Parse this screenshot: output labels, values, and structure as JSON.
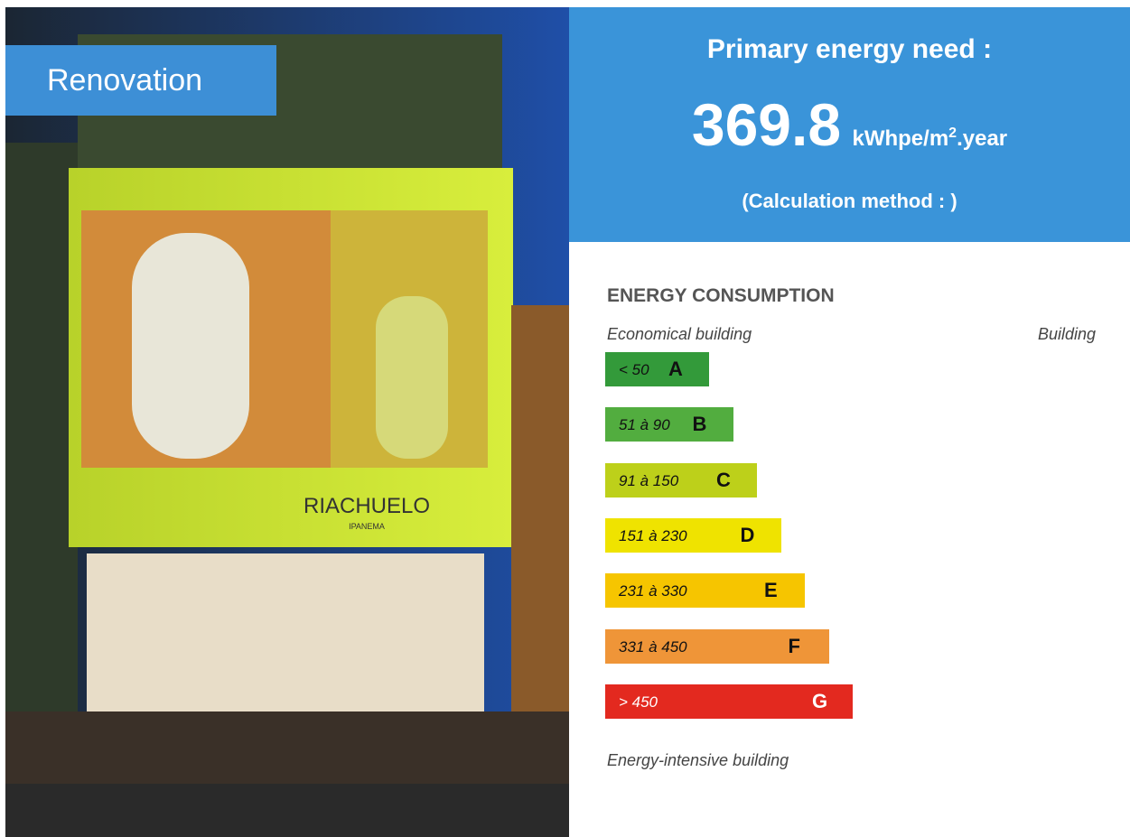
{
  "photo": {
    "badge": "Renovation",
    "sign": "RIACHUELO",
    "sign_sub": "IPANEMA"
  },
  "header": {
    "title": "Primary energy need :",
    "value": "369.8",
    "unit_prefix": "kWhpe/m",
    "unit_sup": "2",
    "unit_suffix": ".year",
    "method": "(Calculation method : )"
  },
  "consumption": {
    "title": "ENERGY CONSUMPTION",
    "left_caption": "Economical building",
    "right_caption": "Building",
    "bottom_caption": "Energy-intensive building",
    "ratings": [
      {
        "range": "< 50",
        "letter": "A",
        "color": "#339a3a"
      },
      {
        "range": "51 à 90",
        "letter": "B",
        "color": "#52ad3f"
      },
      {
        "range": "91 à 150",
        "letter": "C",
        "color": "#bdd01a"
      },
      {
        "range": "151 à 230",
        "letter": "D",
        "color": "#efe300"
      },
      {
        "range": "231 à 330",
        "letter": "E",
        "color": "#f6c500"
      },
      {
        "range": "331 à 450",
        "letter": "F",
        "color": "#ef9538"
      },
      {
        "range": "> 450",
        "letter": "G",
        "color": "#e3291f"
      }
    ]
  }
}
